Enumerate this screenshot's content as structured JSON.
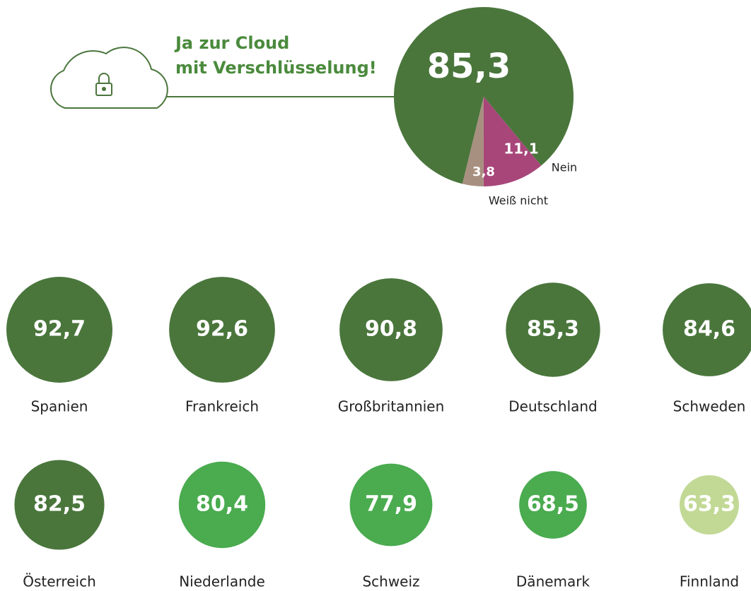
{
  "chart_data": [
    {
      "type": "pie",
      "title": [
        "Ja zur Cloud",
        "mit Verschlüsselung!"
      ],
      "categories": [
        null,
        "Nein",
        "Weiß nicht"
      ],
      "values": [
        85.3,
        11.1,
        3.8
      ],
      "value_labels": [
        "85,3",
        "11,1",
        "3,8"
      ],
      "colors": [
        "#4a763c",
        "#a8467a",
        "#a89080"
      ]
    },
    {
      "type": "bubble",
      "categories": [
        "Spanien",
        "Frankreich",
        "Großbritannien",
        "Deutschland",
        "Schweden",
        "Österreich",
        "Niederlande",
        "Schweiz",
        "Dänemark",
        "Finnland"
      ],
      "values": [
        92.7,
        92.6,
        90.8,
        85.3,
        84.6,
        82.5,
        80.4,
        77.9,
        68.5,
        63.3
      ],
      "value_labels": [
        "92,7",
        "92,6",
        "90,8",
        "85,3",
        "84,6",
        "82,5",
        "80,4",
        "77,9",
        "68,5",
        "63,3"
      ],
      "colors": [
        "#4a763c",
        "#4a763c",
        "#4a763c",
        "#4a763c",
        "#4a763c",
        "#4a763c",
        "#4aab4f",
        "#4aab4f",
        "#4aab4f",
        "#c2d996"
      ]
    }
  ]
}
